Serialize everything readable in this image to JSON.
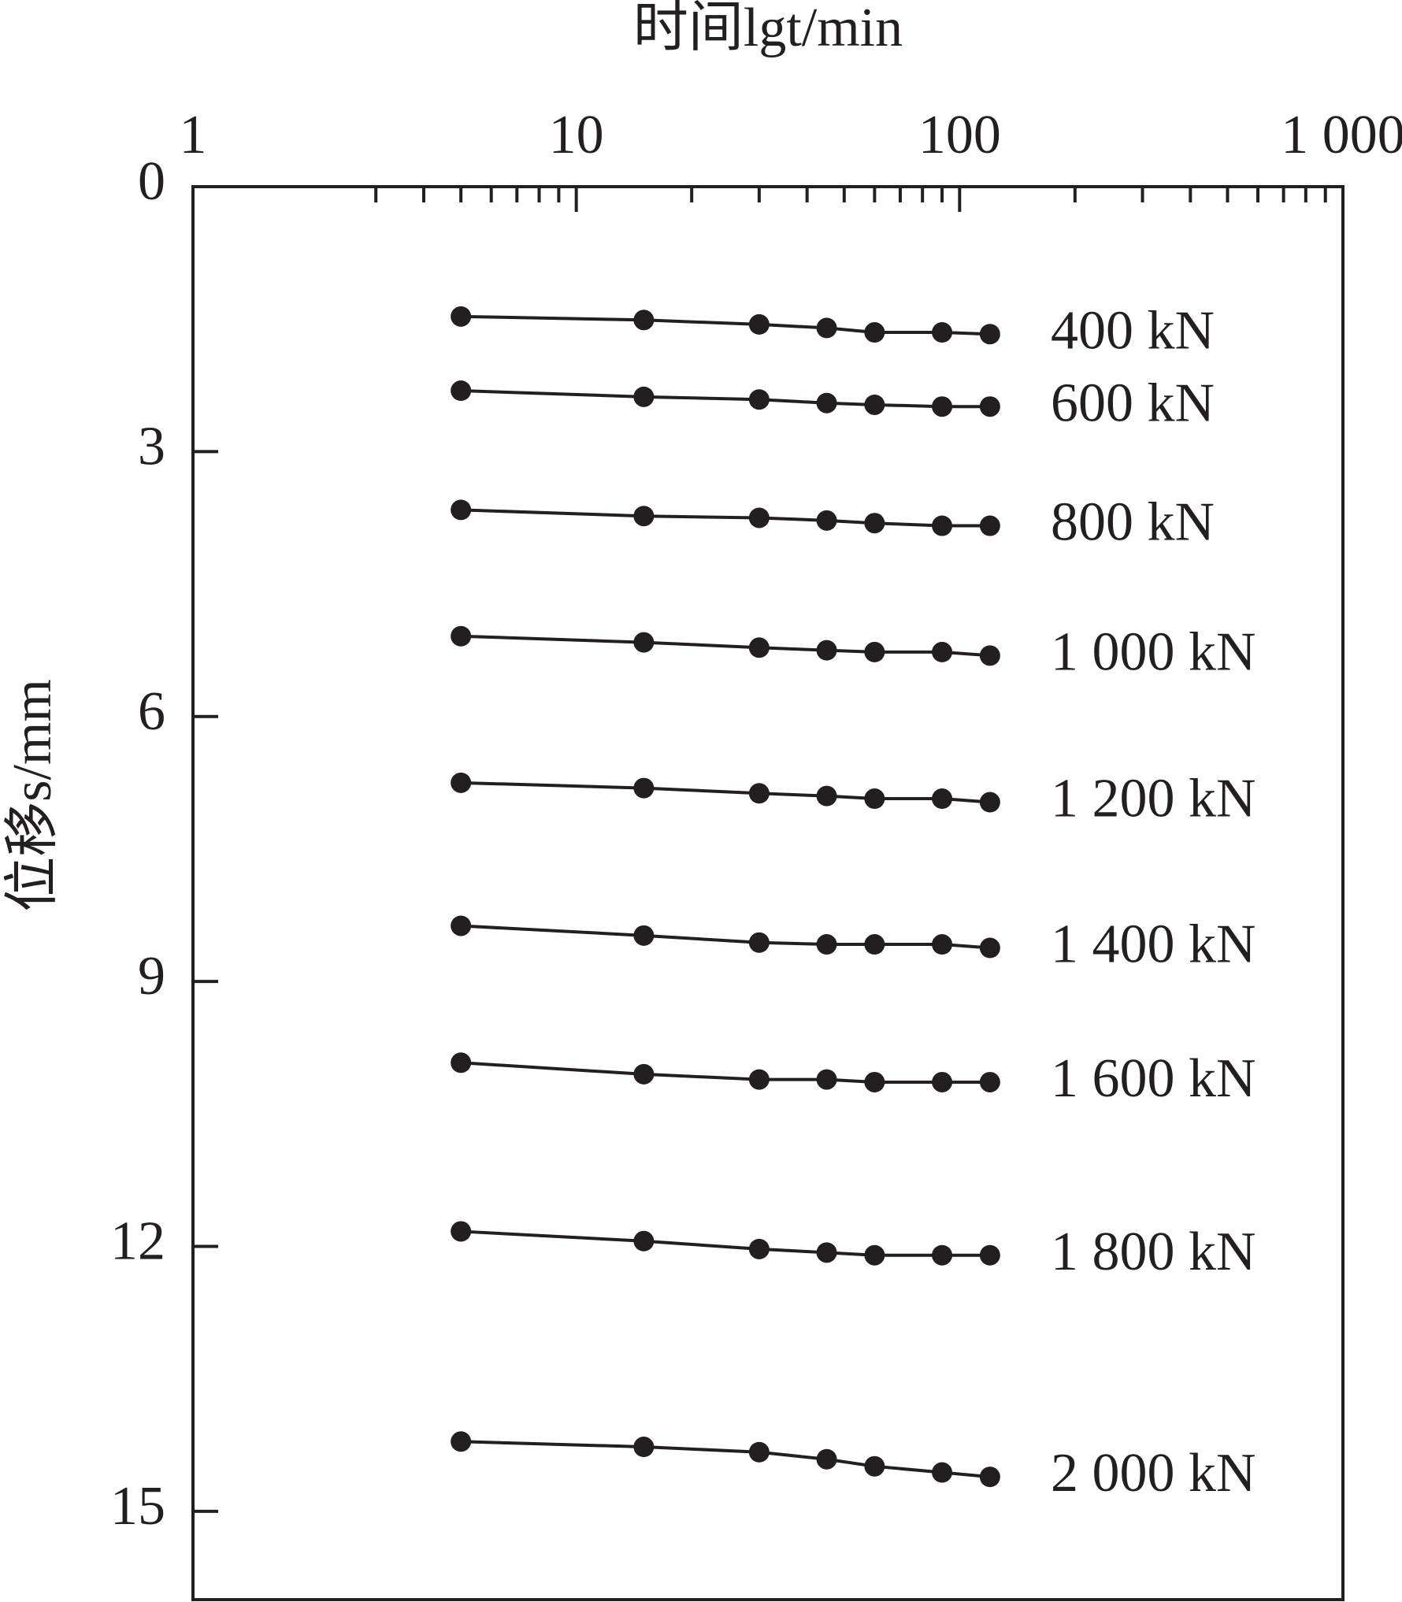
{
  "chart_data": {
    "type": "line",
    "title": "时间lgt/min",
    "y_label": "位移s/mm",
    "x_scale": "log",
    "x_axis_position": "top",
    "y_inverted": true,
    "x": [
      5,
      15,
      30,
      45,
      60,
      90,
      120
    ],
    "xlim": [
      1,
      1000
    ],
    "xticks": [
      1,
      10,
      100,
      {
        "value": 1000,
        "label": "1 000"
      }
    ],
    "xminorticks": [
      3,
      4,
      5,
      6,
      7,
      8,
      9,
      20,
      30,
      40,
      50,
      60,
      70,
      80,
      90,
      200,
      300,
      400,
      500,
      600,
      700,
      800,
      900
    ],
    "ylim": [
      0,
      16
    ],
    "yticks": [
      0,
      3,
      6,
      9,
      12,
      15
    ],
    "series": [
      {
        "name": "400 kN",
        "color": "#231f20",
        "values": [
          1.47,
          1.51,
          1.56,
          1.6,
          1.65,
          1.65,
          1.67
        ]
      },
      {
        "name": "600 kN",
        "color": "#231f20",
        "values": [
          2.31,
          2.38,
          2.41,
          2.45,
          2.47,
          2.49,
          2.49
        ]
      },
      {
        "name": "800 kN",
        "color": "#231f20",
        "values": [
          3.66,
          3.73,
          3.75,
          3.78,
          3.81,
          3.84,
          3.84
        ]
      },
      {
        "name": "1 000 kN",
        "color": "#231f20",
        "values": [
          5.09,
          5.16,
          5.22,
          5.25,
          5.27,
          5.27,
          5.31
        ]
      },
      {
        "name": "1 200 kN",
        "color": "#231f20",
        "values": [
          6.75,
          6.81,
          6.87,
          6.9,
          6.93,
          6.93,
          6.97
        ]
      },
      {
        "name": "1 400 kN",
        "color": "#231f20",
        "values": [
          8.37,
          8.48,
          8.56,
          8.58,
          8.58,
          8.58,
          8.62
        ]
      },
      {
        "name": "1 600 kN",
        "color": "#231f20",
        "values": [
          9.92,
          10.05,
          10.11,
          10.11,
          10.14,
          10.14,
          10.14
        ]
      },
      {
        "name": "1 800 kN",
        "color": "#231f20",
        "values": [
          11.83,
          11.94,
          12.03,
          12.07,
          12.1,
          12.1,
          12.1
        ]
      },
      {
        "name": "2 000 kN",
        "color": "#231f20",
        "values": [
          14.21,
          14.27,
          14.33,
          14.41,
          14.49,
          14.56,
          14.61
        ]
      }
    ]
  }
}
